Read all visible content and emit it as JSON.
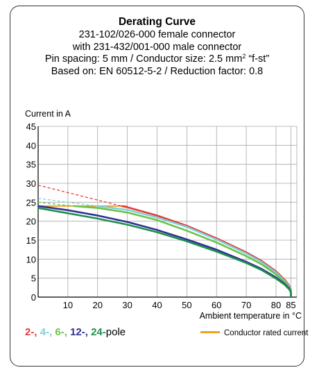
{
  "header": {
    "title": "Derating Curve",
    "line1": "231-102/026-000 female connector",
    "line2": "with 231-432/001-000 male connector",
    "line3_a": "Pin spacing: 5 mm / Conductor size: 2.5 mm",
    "line3_sup": "2",
    "line3_b": " “f-st”",
    "line4": "Based on: EN 60512-5-2 / Reduction factor: 0.8"
  },
  "legend": {
    "items": [
      {
        "label": "2-,",
        "color": "#e53935"
      },
      {
        "label": "4-,",
        "color": "#7fcfd8"
      },
      {
        "label": "6-,",
        "color": "#6cc24a"
      },
      {
        "label": "12-,",
        "color": "#2e3192"
      },
      {
        "label": "24-",
        "color": "#1f8f4e"
      }
    ],
    "suffix": "pole",
    "rated_label": "Conductor rated current",
    "rated_color": "#f0a020"
  },
  "chart_data": {
    "type": "line",
    "ylabel": "Current in A",
    "xlabel": "Ambient temperature in °C",
    "xlim": [
      0,
      87
    ],
    "ylim": [
      0,
      45
    ],
    "xticks": [
      10,
      20,
      30,
      40,
      50,
      60,
      70,
      80,
      85
    ],
    "yticks": [
      0,
      5,
      10,
      15,
      20,
      25,
      30,
      35,
      40,
      45
    ],
    "grid": true,
    "series": [
      {
        "name": "2-",
        "color": "#e53935",
        "x": [
          0,
          28,
          30,
          40,
          50,
          60,
          70,
          75,
          80,
          83,
          84.5,
          85,
          85
        ],
        "y": [
          29.5,
          24,
          23.7,
          21.5,
          18.8,
          15.5,
          11.8,
          9.6,
          6.8,
          4.5,
          3,
          2,
          0
        ],
        "dashed_until": 28
      },
      {
        "name": "4-",
        "color": "#7fcfd8",
        "x": [
          0,
          20,
          30,
          40,
          50,
          60,
          70,
          75,
          80,
          83,
          84.5,
          85,
          85
        ],
        "y": [
          26,
          24,
          23,
          21,
          18.5,
          15.2,
          11.5,
          9.3,
          6.5,
          4.2,
          2.8,
          1.8,
          0
        ],
        "dashed_until": 20
      },
      {
        "name": "6-",
        "color": "#6cc24a",
        "x": [
          0,
          12,
          20,
          30,
          40,
          50,
          60,
          70,
          75,
          80,
          83,
          84.5,
          85,
          85
        ],
        "y": [
          25,
          24,
          23.5,
          22.3,
          20.3,
          17.5,
          14.4,
          10.8,
          8.7,
          6,
          3.9,
          2.5,
          1.5,
          0
        ],
        "dashed_until": 12
      },
      {
        "name": "12-",
        "color": "#2e3192",
        "x": [
          0,
          10,
          20,
          30,
          40,
          50,
          60,
          70,
          75,
          80,
          83,
          84.5,
          85,
          85
        ],
        "y": [
          24,
          22.9,
          21.5,
          19.8,
          17.7,
          15.2,
          12.5,
          9.3,
          7.5,
          5.2,
          3.4,
          2.2,
          1.3,
          0
        ]
      },
      {
        "name": "24-",
        "color": "#1f8f4e",
        "x": [
          0,
          10,
          20,
          30,
          40,
          50,
          60,
          70,
          75,
          80,
          83,
          84.5,
          85,
          85
        ],
        "y": [
          23.5,
          22.1,
          20.7,
          19.1,
          17.1,
          14.7,
          12,
          9,
          7.2,
          4.9,
          3.2,
          2,
          1.2,
          0
        ]
      },
      {
        "name": "Conductor rated current",
        "color": "#f0a020",
        "x": [
          0,
          30
        ],
        "y": [
          24,
          24
        ]
      }
    ]
  }
}
